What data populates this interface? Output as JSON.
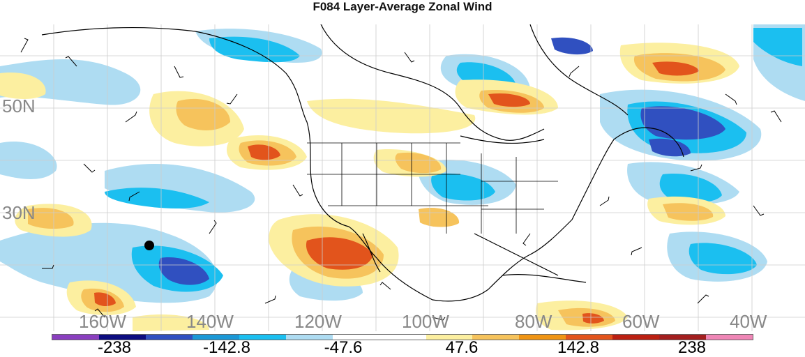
{
  "title": "F084 Layer-Average Zonal Wind",
  "lat_labels": [
    "50N",
    "30N"
  ],
  "lon_labels": [
    "160W",
    "140W",
    "120W",
    "100W",
    "80W",
    "60W",
    "40W"
  ],
  "colorbar": {
    "colors": [
      "#8a3fbf",
      "#0d0d80",
      "#3050c0",
      "#1b98d6",
      "#1bbff0",
      "#aedcf2",
      "#ffffff",
      "#ffffff",
      "#fcefa0",
      "#f6c35c",
      "#ef9414",
      "#e2541c",
      "#bb2012",
      "#a31f1f",
      "#ef86b6"
    ],
    "tick_labels": [
      "-238",
      "-142.8",
      "-47.6",
      "47.6",
      "142.8",
      "238"
    ]
  }
}
